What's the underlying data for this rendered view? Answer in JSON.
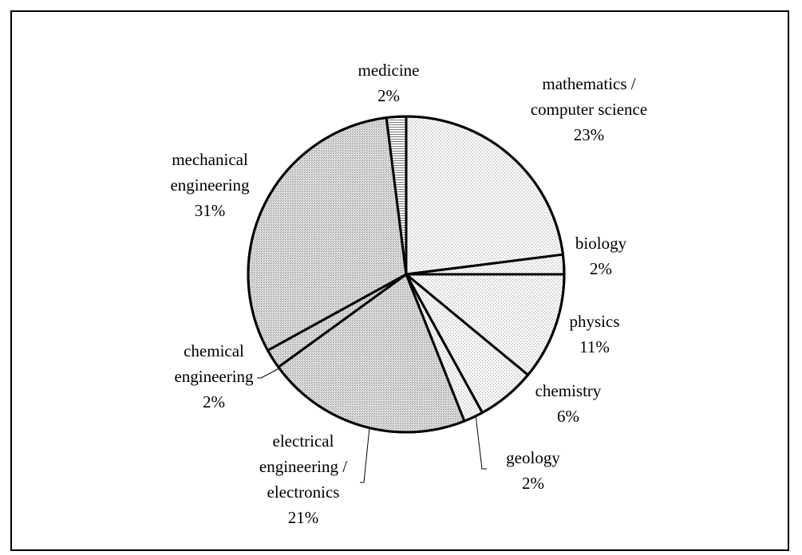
{
  "chart_data": {
    "type": "pie",
    "title": "",
    "start_angle_deg": 0,
    "direction": "clockwise",
    "slices": [
      {
        "label_lines": [
          "mathematics /",
          "computer science"
        ],
        "percent_label": "23%",
        "value": 23,
        "fill": "#ebebeb",
        "pattern": "light-dots"
      },
      {
        "label_lines": [
          "biology"
        ],
        "percent_label": "2%",
        "value": 2,
        "fill": "#ececec",
        "pattern": "light-dots"
      },
      {
        "label_lines": [
          "physics"
        ],
        "percent_label": "11%",
        "value": 11,
        "fill": "#eeeeee",
        "pattern": "light-dots"
      },
      {
        "label_lines": [
          "chemistry"
        ],
        "percent_label": "6%",
        "value": 6,
        "fill": "#efefef",
        "pattern": "light-dots"
      },
      {
        "label_lines": [
          "geology"
        ],
        "percent_label": "2%",
        "value": 2,
        "fill": "#e8e8e8",
        "pattern": "light-dots"
      },
      {
        "label_lines": [
          "electrical",
          "engineering /",
          "electronics"
        ],
        "percent_label": "21%",
        "value": 21,
        "fill": "#cfcfcf",
        "pattern": "dark-dots"
      },
      {
        "label_lines": [
          "chemical",
          "engineering"
        ],
        "percent_label": "2%",
        "value": 2,
        "fill": "#d6d6d6",
        "pattern": "dark-dots"
      },
      {
        "label_lines": [
          "mechanical",
          "engineering"
        ],
        "percent_label": "31%",
        "value": 31,
        "fill": "#d3d3d3",
        "pattern": "dark-dots"
      },
      {
        "label_lines": [
          "medicine"
        ],
        "percent_label": "2%",
        "value": 2,
        "fill": "#c9c9c9",
        "pattern": "h-stripes"
      }
    ],
    "legend": "none",
    "border_color": "#000000"
  }
}
